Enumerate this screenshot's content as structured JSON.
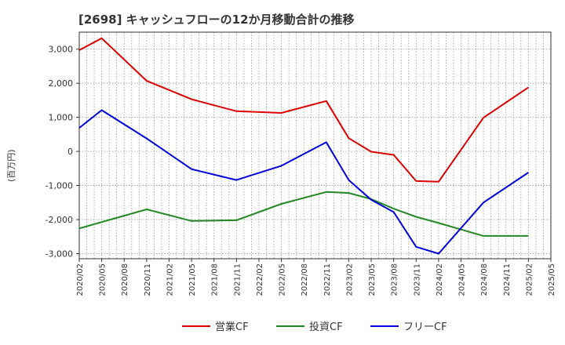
{
  "chart_data": {
    "type": "line",
    "title": "[2698]  キャッシュフローの12か月移動合計の推移",
    "xlabel": "",
    "ylabel": "(百万円)",
    "ylim": [
      -3150,
      3500
    ],
    "yticks": [
      3000,
      2000,
      1000,
      0,
      -1000,
      -2000,
      -3000
    ],
    "ytick_labels": [
      "3,000",
      "2,000",
      "1,000",
      "0",
      "-1,000",
      "-2,000",
      "-3,000"
    ],
    "categories": [
      "2020/02",
      "2020/05",
      "2020/08",
      "2020/11",
      "2021/02",
      "2021/05",
      "2021/08",
      "2021/11",
      "2022/02",
      "2022/05",
      "2022/08",
      "2022/11",
      "2023/02",
      "2023/05",
      "2023/08",
      "2023/11",
      "2024/02",
      "2024/05",
      "2024/08",
      "2024/11",
      "2025/02",
      "2025/05"
    ],
    "grid": true,
    "legend_position": "bottom",
    "series": [
      {
        "name": "営業CF",
        "color": "#dd0000",
        "values": [
          2970,
          3320,
          null,
          2070,
          null,
          1530,
          null,
          1180,
          null,
          1130,
          null,
          1480,
          390,
          -10,
          -100,
          -870,
          -890,
          null,
          990,
          null,
          1880,
          null
        ]
      },
      {
        "name": "投資CF",
        "color": "#228822",
        "values": [
          -2260,
          null,
          null,
          -1700,
          null,
          -2040,
          null,
          -2020,
          null,
          -1540,
          null,
          -1190,
          -1220,
          -1400,
          -1680,
          -1920,
          -2100,
          null,
          -2480,
          null,
          -2480,
          null
        ]
      },
      {
        "name": "フリーCF",
        "color": "#0000dd",
        "values": [
          690,
          1210,
          null,
          380,
          null,
          -520,
          null,
          -840,
          null,
          -420,
          null,
          270,
          -840,
          -1420,
          -1780,
          -2800,
          -3000,
          null,
          -1500,
          null,
          -620,
          null
        ]
      }
    ]
  }
}
